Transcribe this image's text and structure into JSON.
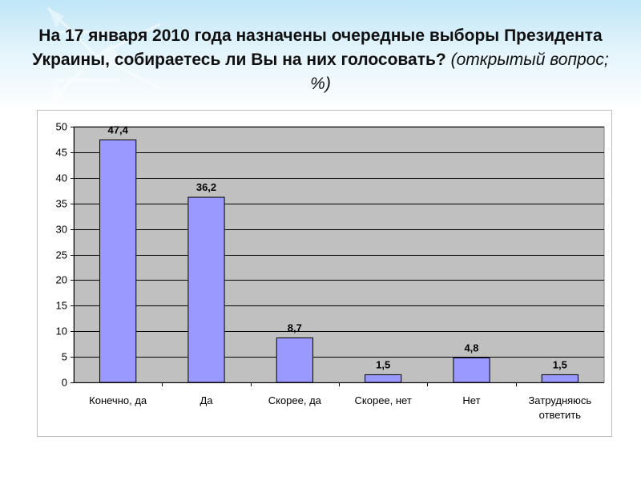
{
  "slide": {
    "title_main": "На 17 января 2010 года назначены очередные выборы Президента Украины, собираетесь ли Вы на них голосовать?",
    "title_sub": "(открытый вопрос; %)"
  },
  "colors": {
    "bar_fill": "#9999ff",
    "bar_stroke": "#000000",
    "plot_bg": "#c0c0c0",
    "grid": "#000000"
  },
  "chart_data": {
    "type": "bar",
    "categories": [
      "Конечно, да",
      "Да",
      "Скорее, да",
      "Скорее, нет",
      "Нет",
      "Затрудняюсь ответить"
    ],
    "category_lines": [
      [
        "Конечно, да"
      ],
      [
        "Да"
      ],
      [
        "Скорее, да"
      ],
      [
        "Скорее, нет"
      ],
      [
        "Нет"
      ],
      [
        "Затрудняюсь",
        "ответить"
      ]
    ],
    "values": [
      47.4,
      36.2,
      8.7,
      1.5,
      4.8,
      1.5
    ],
    "value_labels": [
      "47,4",
      "36,2",
      "8,7",
      "1,5",
      "4,8",
      "1,5"
    ],
    "yticks": [
      "0",
      "5",
      "10",
      "15",
      "20",
      "25",
      "30",
      "35",
      "40",
      "45",
      "50"
    ],
    "ylim": [
      0,
      50
    ],
    "grid": true,
    "legend": "none"
  }
}
